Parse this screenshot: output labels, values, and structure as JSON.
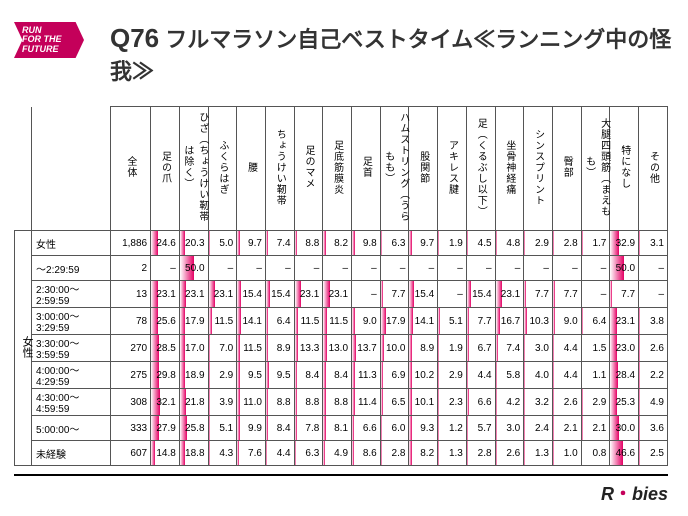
{
  "badge": {
    "l1": "RUN",
    "l2": "FOR THE",
    "l3": "FUTURE"
  },
  "title": {
    "q": "Q76",
    "text": " フルマラソン自己ベストタイム≪ランニング中の怪我≫"
  },
  "footer": {
    "prefix": "R",
    "dot": "・",
    "suffix": "bies"
  },
  "style": {
    "bar_max": 100,
    "bar_gradient_to": "#e40064",
    "bar_gradient_from_alpha": 0
  },
  "table": {
    "corner": "",
    "side_label": "女性",
    "columns": [
      "全体",
      "足の爪",
      "ひざ︵ちょうけい靭帯は除く︶",
      "ふくらはぎ",
      "腰",
      "ちょうけい靭帯",
      "足のマメ",
      "足底筋膜炎",
      "足首",
      "ハムストリング︵うらもも︶",
      "股関節",
      "アキレス腱",
      "足︵くるぶし以下︶",
      "坐骨神経痛",
      "シンスプリント",
      "臀部",
      "大腿四頭筋︵まえもも︶",
      "特になし",
      "その他"
    ],
    "rows": [
      {
        "label": "女性",
        "total": "1,886",
        "v": [
          24.6,
          20.3,
          5.0,
          9.7,
          7.4,
          8.8,
          8.2,
          9.8,
          6.3,
          9.7,
          1.9,
          4.5,
          4.8,
          2.9,
          2.8,
          1.7,
          32.9,
          3.1
        ]
      },
      {
        "label": "～2:29:59",
        "total": "2",
        "v": [
          null,
          50.0,
          null,
          null,
          null,
          null,
          null,
          null,
          null,
          null,
          null,
          null,
          null,
          null,
          null,
          null,
          50.0,
          null
        ]
      },
      {
        "label": "2:30:00～2:59:59",
        "total": "13",
        "v": [
          23.1,
          23.1,
          23.1,
          15.4,
          15.4,
          23.1,
          23.1,
          null,
          7.7,
          15.4,
          null,
          15.4,
          23.1,
          7.7,
          7.7,
          null,
          7.7,
          null
        ]
      },
      {
        "label": "3:00:00～3:29:59",
        "total": "78",
        "v": [
          25.6,
          17.9,
          11.5,
          14.1,
          6.4,
          11.5,
          11.5,
          9.0,
          17.9,
          14.1,
          5.1,
          7.7,
          16.7,
          10.3,
          9.0,
          6.4,
          23.1,
          3.8
        ]
      },
      {
        "label": "3:30:00～3:59:59",
        "total": "270",
        "v": [
          28.5,
          17.0,
          7.0,
          11.5,
          8.9,
          13.3,
          13.0,
          13.7,
          10.0,
          8.9,
          1.9,
          6.7,
          7.4,
          3.0,
          4.4,
          1.5,
          23.0,
          2.6
        ]
      },
      {
        "label": "4:00:00～4:29:59",
        "total": "275",
        "v": [
          29.8,
          18.9,
          2.9,
          9.5,
          9.5,
          8.4,
          8.4,
          11.3,
          6.9,
          10.2,
          2.9,
          4.4,
          5.8,
          4.0,
          4.4,
          1.1,
          28.4,
          2.2
        ]
      },
      {
        "label": "4:30:00～4:59:59",
        "total": "308",
        "v": [
          32.1,
          21.8,
          3.9,
          11.0,
          8.8,
          8.8,
          8.8,
          11.4,
          6.5,
          10.1,
          2.3,
          6.6,
          4.2,
          3.2,
          2.6,
          2.9,
          25.3,
          4.9
        ]
      },
      {
        "label": "5:00:00～",
        "total": "333",
        "v": [
          27.9,
          25.8,
          5.1,
          9.9,
          8.4,
          7.8,
          8.1,
          6.6,
          6.0,
          9.3,
          1.2,
          5.7,
          3.0,
          2.4,
          2.1,
          2.1,
          30.0,
          3.6
        ]
      },
      {
        "label": "未経験",
        "total": "607",
        "v": [
          14.8,
          18.8,
          4.3,
          7.6,
          4.4,
          6.3,
          4.9,
          8.6,
          2.8,
          8.2,
          1.3,
          2.8,
          2.6,
          1.3,
          1.0,
          0.8,
          46.6,
          2.5
        ]
      }
    ]
  }
}
